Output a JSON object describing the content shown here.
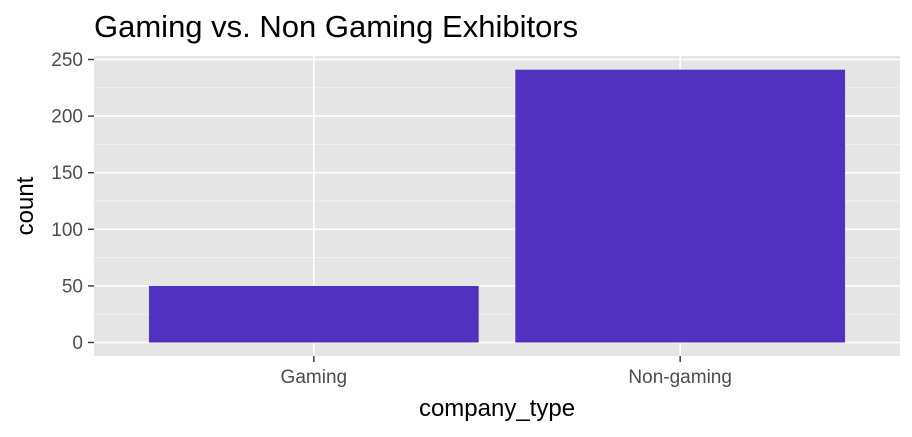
{
  "chart_data": {
    "type": "bar",
    "title": "Gaming vs. Non Gaming Exhibitors",
    "xlabel": "company_type",
    "ylabel": "count",
    "categories": [
      "Gaming",
      "Non-gaming"
    ],
    "values": [
      50,
      241
    ],
    "ylim": [
      0,
      250
    ],
    "y_ticks": [
      0,
      50,
      100,
      150,
      200,
      250
    ],
    "grid": true,
    "legend": "none",
    "colors": {
      "bar": "#5131C0",
      "panel_background": "#E5E5E5",
      "grid_major": "#FFFFFF",
      "grid_minor": "#F2F2F2",
      "tick_text": "#4D4D4D",
      "axis_title": "#000000"
    }
  }
}
